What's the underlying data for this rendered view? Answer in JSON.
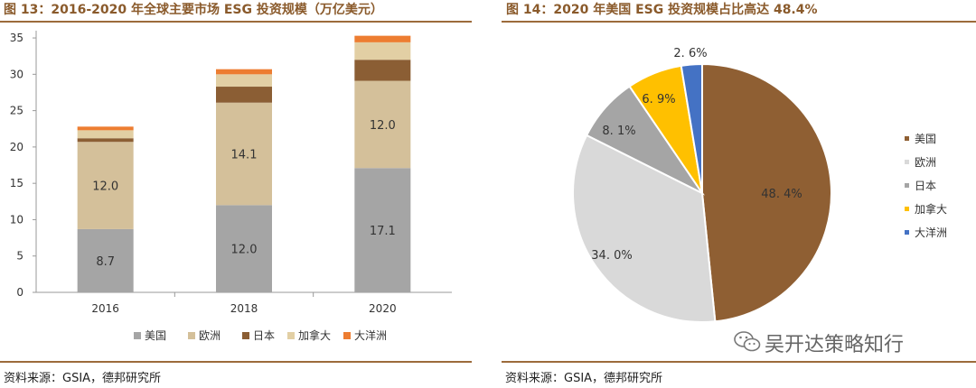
{
  "left": {
    "title": "图 13：2016-2020 年全球主要市场 ESG 投资规模（万亿美元）",
    "source": "资料来源：GSIA，德邦研究所"
  },
  "right": {
    "title": "图 14：2020 年美国 ESG 投资规模占比高达 48.4%",
    "source": "资料来源：GSIA，德邦研究所"
  },
  "watermark": "吴开达策略知行",
  "colors": {
    "美国": "#a5a5a5",
    "欧洲": "#d4c09a",
    "日本": "#8b5e34",
    "加拿大": "#e2cfa4",
    "大洋洲": "#ed7d31",
    "pie_美国": "#8f5f33",
    "pie_欧洲": "#d9d9d9",
    "pie_日本": "#a5a5a5",
    "pie_加拿大": "#ffc000",
    "pie_大洋洲": "#4472c4"
  },
  "chart_data": [
    {
      "type": "bar",
      "stacked": true,
      "title": "2016-2020 年全球主要市场 ESG 投资规模（万亿美元）",
      "categories": [
        "2016",
        "2018",
        "2020"
      ],
      "series": [
        {
          "name": "美国",
          "values": [
            8.7,
            12.0,
            17.1
          ],
          "labels": [
            "8.7",
            "12.0",
            "17.1"
          ]
        },
        {
          "name": "欧洲",
          "values": [
            12.0,
            14.1,
            12.0
          ],
          "labels": [
            "12.0",
            "14.1",
            "12.0"
          ]
        },
        {
          "name": "日本",
          "values": [
            0.5,
            2.2,
            2.9
          ]
        },
        {
          "name": "加拿大",
          "values": [
            1.1,
            1.7,
            2.4
          ]
        },
        {
          "name": "大洋洲",
          "values": [
            0.5,
            0.7,
            0.9
          ]
        }
      ],
      "yticks": [
        "0",
        "5",
        "10",
        "15",
        "20",
        "25",
        "30",
        "35"
      ],
      "ylim": [
        0,
        36
      ],
      "legend": "bottom"
    },
    {
      "type": "pie",
      "title": "2020 年美国 ESG 投资规模占比高达 48.4%",
      "slices": [
        {
          "name": "美国",
          "value": 48.4,
          "label": "48. 4%"
        },
        {
          "name": "欧洲",
          "value": 34.0,
          "label": "34. 0%"
        },
        {
          "name": "日本",
          "value": 8.1,
          "label": "8. 1%"
        },
        {
          "name": "加拿大",
          "value": 6.9,
          "label": "6. 9%"
        },
        {
          "name": "大洋洲",
          "value": 2.6,
          "label": "2. 6%"
        }
      ],
      "legend": "right"
    }
  ]
}
